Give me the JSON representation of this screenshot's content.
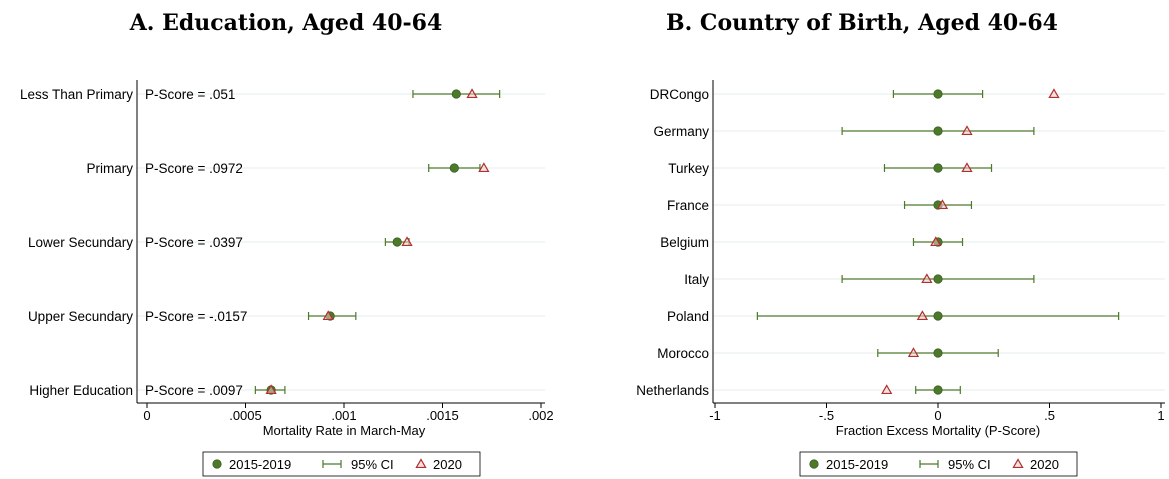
{
  "chart_data": [
    {
      "type": "scatter",
      "title": "A. Education, Aged 40-64",
      "xlabel": "Mortality Rate in March-May",
      "ylabel": "",
      "xlim": [
        0,
        0.002
      ],
      "xticks": [
        "0",
        ".0005",
        ".001",
        ".0015",
        ".002"
      ],
      "xtick_values": [
        0,
        0.0005,
        0.001,
        0.0015,
        0.002
      ],
      "categories": [
        "Less Than Primary",
        "Primary",
        "Lower Secundary",
        "Upper Secundary",
        "Higher Education"
      ],
      "annotations": [
        "P-Score = .051",
        "P-Score = .0972",
        "P-Score = .0397",
        "P-Score = -.0157",
        "P-Score = .0097"
      ],
      "series": [
        {
          "name": "2015-2019",
          "values": [
            0.00157,
            0.00156,
            0.00127,
            0.00093,
            0.00063
          ]
        },
        {
          "name": "95% CI",
          "low": [
            0.00135,
            0.00143,
            0.00121,
            0.00082,
            0.00055
          ],
          "high": [
            0.00179,
            0.00169,
            0.00133,
            0.00106,
            0.0007
          ]
        },
        {
          "name": "2020",
          "values": [
            0.00165,
            0.00171,
            0.00132,
            0.00092,
            0.00063
          ]
        }
      ],
      "legend": "bottom",
      "grid": true
    },
    {
      "type": "scatter",
      "title": "B. Country of Birth, Aged 40-64",
      "xlabel": "Fraction Excess Mortality (P-Score)",
      "ylabel": "",
      "xlim": [
        -1,
        1
      ],
      "xticks": [
        "-1",
        "-.5",
        "0",
        ".5",
        "1"
      ],
      "xtick_values": [
        -1,
        -0.5,
        0,
        0.5,
        1
      ],
      "categories": [
        "DRCongo",
        "Germany",
        "Turkey",
        "France",
        "Belgium",
        "Italy",
        "Poland",
        "Morocco",
        "Netherlands"
      ],
      "series": [
        {
          "name": "2015-2019",
          "values": [
            0,
            0,
            0,
            0,
            0,
            0,
            0,
            0,
            0
          ]
        },
        {
          "name": "95% CI",
          "low": [
            -0.2,
            -0.43,
            -0.24,
            -0.15,
            -0.11,
            -0.43,
            -0.81,
            -0.27,
            -0.1
          ],
          "high": [
            0.2,
            0.43,
            0.24,
            0.15,
            0.11,
            0.43,
            0.81,
            0.27,
            0.1
          ]
        },
        {
          "name": "2020",
          "values": [
            0.52,
            0.13,
            0.13,
            0.02,
            -0.01,
            -0.05,
            -0.07,
            -0.11,
            -0.23
          ]
        }
      ],
      "legend": "bottom",
      "grid": true
    }
  ],
  "colors": {
    "marker_fill": "#4d7a2a",
    "marker_edge": "#3b6020",
    "ci": "#4d7a2a",
    "triangle": "#b03030",
    "triangle_fill": "#f2c9c9",
    "grid": "#e6ecef",
    "axis": "#000000"
  }
}
